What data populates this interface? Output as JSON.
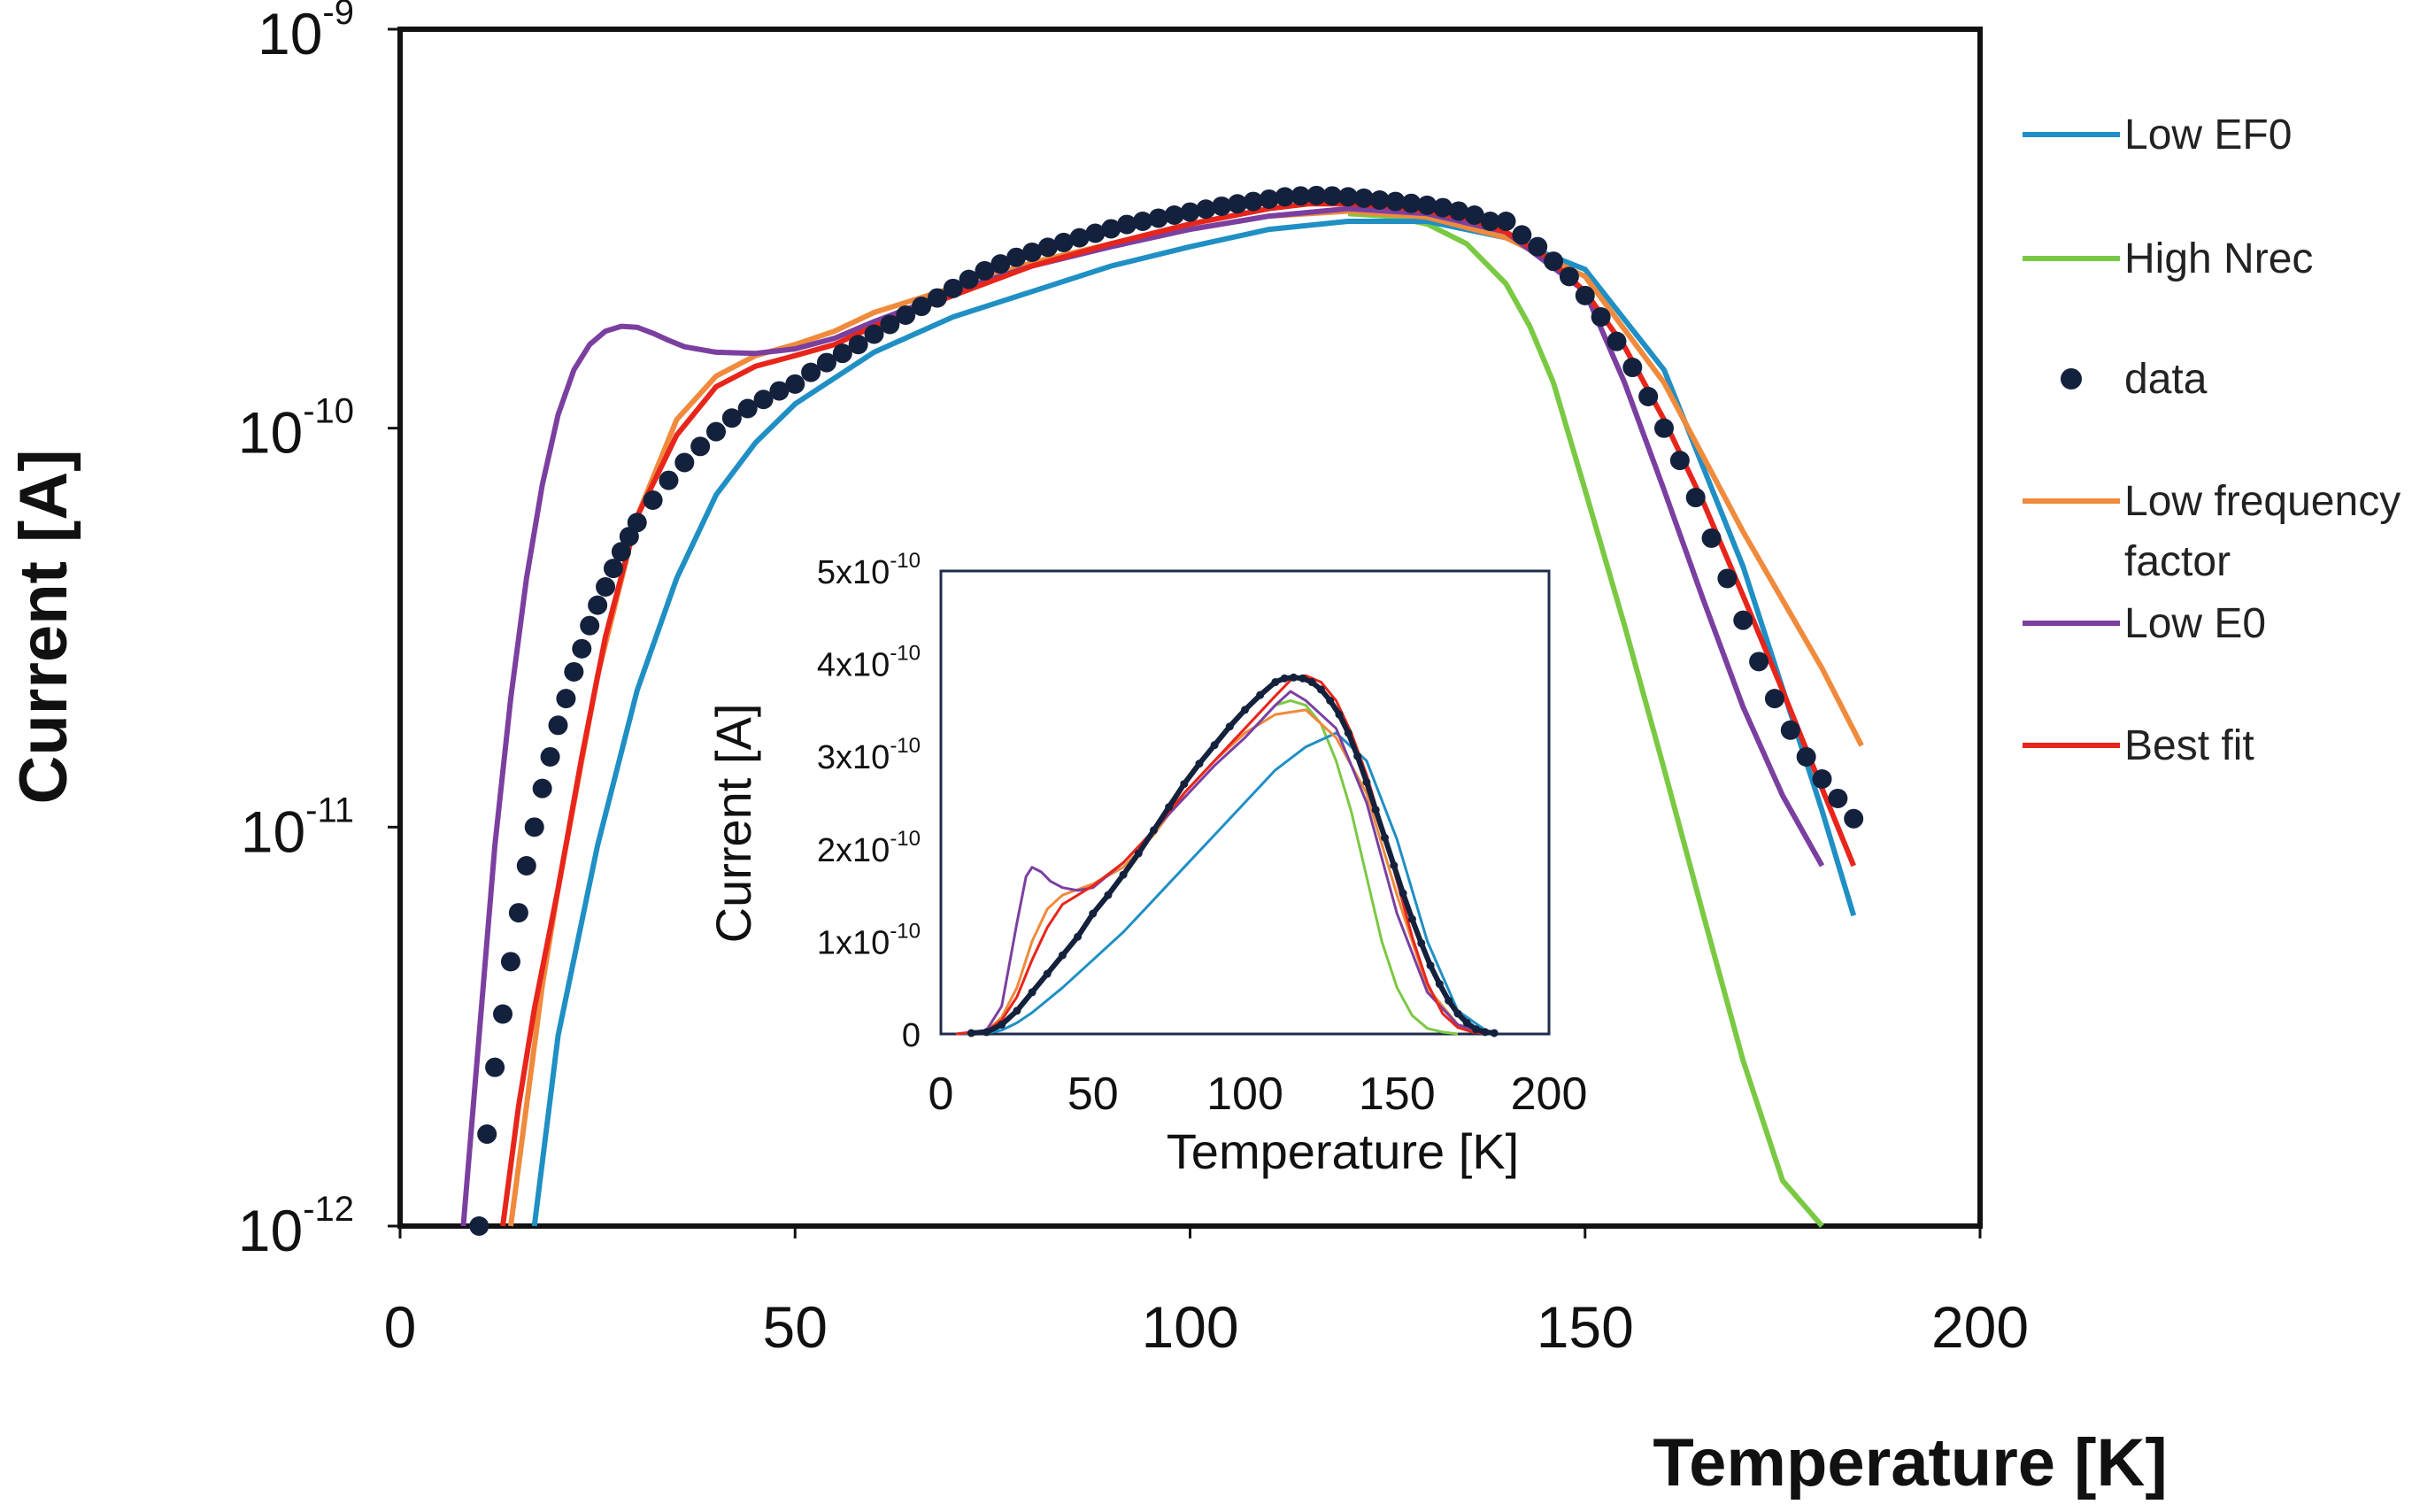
{
  "chart_data": [
    {
      "type": "line",
      "yscale": "log",
      "xlabel": "Temperature [K]",
      "ylabel": "Current [A]",
      "xlim": [
        0,
        200
      ],
      "ylim": [
        1e-12,
        1e-09
      ],
      "x_ticks": [
        "0",
        "50",
        "100",
        "150",
        "200"
      ],
      "x_tick_values": [
        0,
        50,
        100,
        150,
        200
      ],
      "y_ticks": [
        {
          "value": 1e-09,
          "base": "10",
          "exp": "-9"
        },
        {
          "value": 1e-10,
          "base": "10",
          "exp": "-10"
        },
        {
          "value": 1e-11,
          "base": "10",
          "exp": "-11"
        },
        {
          "value": 1e-12,
          "base": "10",
          "exp": "-12"
        }
      ],
      "legend_position": "right",
      "series": [
        {
          "name": "Low EF0",
          "label_lines": [
            "Low EF0"
          ],
          "color": "#1f8fc4",
          "style": "line",
          "x": [
            17,
            20,
            25,
            30,
            35,
            40,
            45,
            50,
            60,
            70,
            80,
            90,
            100,
            110,
            120,
            130,
            140,
            150,
            160,
            170,
            180,
            184
          ],
          "y": [
            1e-12,
            3e-12,
            9e-12,
            2.2e-11,
            4.2e-11,
            6.8e-11,
            9.2e-11,
            1.15e-10,
            1.55e-10,
            1.9e-10,
            2.2e-10,
            2.55e-10,
            2.85e-10,
            3.15e-10,
            3.3e-10,
            3.3e-10,
            3e-10,
            2.5e-10,
            1.4e-10,
            4.5e-11,
            1.1e-11,
            6e-12
          ]
        },
        {
          "name": "High Nrec",
          "label_lines": [
            "High Nrec"
          ],
          "color": "#7ac943",
          "style": "line",
          "x": [
            120,
            125,
            130,
            135,
            140,
            143,
            146,
            150,
            155,
            160,
            165,
            170,
            175,
            180
          ],
          "y": [
            3.45e-10,
            3.4e-10,
            3.25e-10,
            2.9e-10,
            2.3e-10,
            1.8e-10,
            1.3e-10,
            7e-11,
            3.2e-11,
            1.4e-11,
            6e-12,
            2.6e-12,
            1.3e-12,
            1e-12
          ]
        },
        {
          "name": "data",
          "label_lines": [
            "data"
          ],
          "color": "#14213d",
          "style": "marker",
          "x": [
            10,
            11,
            12,
            13,
            14,
            15,
            16,
            17,
            18,
            19,
            20,
            21,
            22,
            23,
            24,
            25,
            26,
            27,
            28,
            29,
            30,
            32,
            34,
            36,
            38,
            40,
            42,
            44,
            46,
            48,
            50,
            52,
            54,
            56,
            58,
            60,
            62,
            64,
            66,
            68,
            70,
            72,
            74,
            76,
            78,
            80,
            82,
            84,
            86,
            88,
            90,
            92,
            94,
            96,
            98,
            100,
            102,
            104,
            106,
            108,
            110,
            112,
            114,
            116,
            118,
            120,
            122,
            124,
            126,
            128,
            130,
            132,
            134,
            136,
            138,
            140,
            142,
            144,
            146,
            148,
            150,
            152,
            154,
            156,
            158,
            160,
            162,
            164,
            166,
            168,
            170,
            172,
            174,
            176,
            178,
            180,
            182,
            184
          ],
          "y": [
            1e-12,
            1.7e-12,
            2.5e-12,
            3.4e-12,
            4.6e-12,
            6.1e-12,
            8e-12,
            1e-11,
            1.25e-11,
            1.5e-11,
            1.8e-11,
            2.1e-11,
            2.45e-11,
            2.8e-11,
            3.2e-11,
            3.6e-11,
            4e-11,
            4.45e-11,
            4.9e-11,
            5.35e-11,
            5.8e-11,
            6.6e-11,
            7.4e-11,
            8.2e-11,
            9e-11,
            9.8e-11,
            1.06e-10,
            1.12e-10,
            1.18e-10,
            1.24e-10,
            1.29e-10,
            1.38e-10,
            1.46e-10,
            1.54e-10,
            1.62e-10,
            1.72e-10,
            1.82e-10,
            1.92e-10,
            2.02e-10,
            2.12e-10,
            2.24e-10,
            2.36e-10,
            2.48e-10,
            2.58e-10,
            2.68e-10,
            2.76e-10,
            2.84e-10,
            2.92e-10,
            3e-10,
            3.08e-10,
            3.16e-10,
            3.24e-10,
            3.3e-10,
            3.36e-10,
            3.42e-10,
            3.48e-10,
            3.54e-10,
            3.6e-10,
            3.65e-10,
            3.7e-10,
            3.75e-10,
            3.8e-10,
            3.82e-10,
            3.83e-10,
            3.82e-10,
            3.8e-10,
            3.77e-10,
            3.73e-10,
            3.7e-10,
            3.66e-10,
            3.62e-10,
            3.57e-10,
            3.5e-10,
            3.42e-10,
            3.3e-10,
            3.3e-10,
            3.05e-10,
            2.85e-10,
            2.62e-10,
            2.4e-10,
            2.15e-10,
            1.9e-10,
            1.65e-10,
            1.42e-10,
            1.2e-10,
            1e-10,
            8.3e-11,
            6.7e-11,
            5.3e-11,
            4.2e-11,
            3.3e-11,
            2.6e-11,
            2.1e-11,
            1.75e-11,
            1.5e-11,
            1.32e-11,
            1.18e-11,
            1.05e-11
          ]
        },
        {
          "name": "Low frequency factor",
          "label_lines": [
            "Low frequency",
            "factor"
          ],
          "color": "#f08a3c",
          "style": "line",
          "x": [
            14,
            16,
            18,
            20,
            25,
            30,
            35,
            40,
            45,
            50,
            55,
            60,
            70,
            80,
            90,
            100,
            110,
            120,
            130,
            140,
            150,
            160,
            170,
            180,
            185
          ],
          "y": [
            1e-12,
            2e-12,
            4e-12,
            7e-12,
            2.4e-11,
            6e-11,
            1.05e-10,
            1.35e-10,
            1.52e-10,
            1.62e-10,
            1.75e-10,
            1.95e-10,
            2.25e-10,
            2.6e-10,
            2.9e-10,
            3.15e-10,
            3.4e-10,
            3.5e-10,
            3.38e-10,
            3e-10,
            2.4e-10,
            1.3e-10,
            5.5e-11,
            2.5e-11,
            1.6e-11
          ]
        },
        {
          "name": "Low E0",
          "label_lines": [
            "Low E0"
          ],
          "color": "#7b3fa0",
          "style": "line",
          "x": [
            8,
            10,
            12,
            14,
            16,
            18,
            20,
            22,
            24,
            26,
            28,
            30,
            32,
            34,
            36,
            40,
            45,
            50,
            55,
            60,
            70,
            80,
            90,
            100,
            110,
            120,
            130,
            140,
            150,
            155,
            160,
            165,
            170,
            175,
            180
          ],
          "y": [
            1e-12,
            3e-12,
            9e-12,
            2.1e-11,
            4.2e-11,
            7.2e-11,
            1.08e-10,
            1.4e-10,
            1.62e-10,
            1.75e-10,
            1.8e-10,
            1.79e-10,
            1.73e-10,
            1.66e-10,
            1.6e-10,
            1.55e-10,
            1.54e-10,
            1.58e-10,
            1.68e-10,
            1.85e-10,
            2.2e-10,
            2.55e-10,
            2.85e-10,
            3.15e-10,
            3.4e-10,
            3.55e-10,
            3.45e-10,
            3.1e-10,
            2.2e-10,
            1.3e-10,
            7e-11,
            3.7e-11,
            2e-11,
            1.2e-11,
            8e-12
          ]
        },
        {
          "name": "Best fit",
          "label_lines": [
            "Best fit"
          ],
          "color": "#e8251b",
          "style": "line",
          "x": [
            13,
            15,
            17,
            20,
            23,
            26,
            30,
            35,
            40,
            45,
            50,
            55,
            60,
            70,
            80,
            90,
            100,
            110,
            115,
            120,
            125,
            130,
            135,
            140,
            145,
            150,
            155,
            160,
            165,
            170,
            175,
            180,
            184
          ],
          "y": [
            1e-12,
            2e-12,
            3.5e-12,
            7e-12,
            1.5e-11,
            3e-11,
            6e-11,
            9.6e-11,
            1.27e-10,
            1.43e-10,
            1.52e-10,
            1.62e-10,
            1.8e-10,
            2.15e-10,
            2.55e-10,
            2.9e-10,
            3.25e-10,
            3.55e-10,
            3.65e-10,
            3.65e-10,
            3.6e-10,
            3.5e-10,
            3.35e-10,
            3.1e-10,
            2.7e-10,
            2.2e-10,
            1.6e-10,
            1.05e-10,
            6.5e-11,
            3.8e-11,
            2.2e-11,
            1.25e-11,
            8e-12
          ]
        }
      ]
    },
    {
      "type": "line",
      "inset": true,
      "yscale": "linear",
      "xlabel": "Temperature [K]",
      "ylabel": "Current [A]",
      "xlim": [
        0,
        200
      ],
      "ylim": [
        0,
        5e-10
      ],
      "x_ticks": [
        "0",
        "50",
        "100",
        "150",
        "200"
      ],
      "x_tick_values": [
        0,
        50,
        100,
        150,
        200
      ],
      "y_ticks": [
        {
          "value": 0,
          "mant": "0",
          "base": "",
          "exp": ""
        },
        {
          "value": 1e-10,
          "mant": "1x",
          "base": "10",
          "exp": "-10"
        },
        {
          "value": 2e-10,
          "mant": "2x",
          "base": "10",
          "exp": "-10"
        },
        {
          "value": 3e-10,
          "mant": "3x",
          "base": "10",
          "exp": "-10"
        },
        {
          "value": 4e-10,
          "mant": "4x",
          "base": "10",
          "exp": "-10"
        },
        {
          "value": 5e-10,
          "mant": "5x",
          "base": "10",
          "exp": "-10"
        }
      ],
      "series": [
        {
          "name": "Low EF0",
          "color": "#1f8fc4",
          "style": "line",
          "x": [
            5,
            15,
            20,
            25,
            30,
            40,
            50,
            60,
            70,
            80,
            90,
            100,
            110,
            120,
            130,
            140,
            150,
            160,
            170,
            180
          ],
          "y": [
            0,
            1e-12,
            4e-12,
            1.2e-11,
            2.3e-11,
            5e-11,
            8e-11,
            1.1e-10,
            1.45e-10,
            1.8e-10,
            2.15e-10,
            2.5e-10,
            2.85e-10,
            3.1e-10,
            3.25e-10,
            2.95e-10,
            2.1e-10,
            1e-10,
            2.5e-11,
            2e-12
          ]
        },
        {
          "name": "High Nrec",
          "color": "#7ac943",
          "style": "line",
          "x": [
            110,
            115,
            120,
            125,
            130,
            135,
            140,
            145,
            150,
            155,
            160,
            165,
            170
          ],
          "y": [
            3.55e-10,
            3.6e-10,
            3.55e-10,
            3.35e-10,
            2.95e-10,
            2.4e-10,
            1.7e-10,
            1e-10,
            5e-11,
            2e-11,
            6e-12,
            2e-12,
            0
          ]
        },
        {
          "name": "data",
          "color": "#14213d",
          "style": "marker",
          "x": [
            10,
            15,
            20,
            25,
            30,
            35,
            40,
            45,
            50,
            55,
            60,
            65,
            70,
            75,
            80,
            85,
            90,
            95,
            100,
            105,
            110,
            113,
            116,
            119,
            122,
            125,
            128,
            131,
            134,
            137,
            140,
            143,
            146,
            149,
            152,
            155,
            158,
            161,
            164,
            167,
            170,
            173,
            176,
            179,
            182
          ],
          "y": [
            1e-12,
            2e-12,
            1e-11,
            2.5e-11,
            4.5e-11,
            6.5e-11,
            8.5e-11,
            1.05e-10,
            1.3e-10,
            1.5e-10,
            1.72e-10,
            1.95e-10,
            2.2e-10,
            2.45e-10,
            2.7e-10,
            2.92e-10,
            3.12e-10,
            3.32e-10,
            3.5e-10,
            3.66e-10,
            3.8e-10,
            3.84e-10,
            3.85e-10,
            3.84e-10,
            3.8e-10,
            3.72e-10,
            3.6e-10,
            3.45e-10,
            3.25e-10,
            3e-10,
            2.72e-10,
            2.42e-10,
            2.12e-10,
            1.82e-10,
            1.52e-10,
            1.24e-10,
            9.8e-11,
            7.4e-11,
            5.4e-11,
            3.6e-11,
            2.2e-11,
            1.2e-11,
            5e-12,
            2e-12,
            1e-12
          ]
        },
        {
          "name": "Low frequency factor",
          "color": "#f08a3c",
          "style": "line",
          "x": [
            5,
            15,
            20,
            25,
            30,
            35,
            40,
            50,
            60,
            70,
            80,
            90,
            100,
            110,
            120,
            130,
            140,
            150,
            160,
            170,
            180
          ],
          "y": [
            0,
            3e-12,
            1.8e-11,
            5e-11,
            1e-10,
            1.35e-10,
            1.5e-10,
            1.62e-10,
            1.8e-10,
            2.15e-10,
            2.6e-10,
            2.95e-10,
            3.25e-10,
            3.45e-10,
            3.5e-10,
            3.2e-10,
            2.6e-10,
            1.5e-10,
            5e-11,
            1e-11,
            0
          ]
        },
        {
          "name": "Low E0",
          "color": "#7b3fa0",
          "style": "line",
          "x": [
            5,
            15,
            20,
            25,
            28,
            30,
            33,
            36,
            40,
            45,
            50,
            60,
            70,
            80,
            90,
            100,
            110,
            115,
            120,
            130,
            140,
            150,
            160,
            170,
            180
          ],
          "y": [
            0,
            4e-12,
            3e-11,
            1.2e-10,
            1.7e-10,
            1.8e-10,
            1.75e-10,
            1.65e-10,
            1.58e-10,
            1.55e-10,
            1.58e-10,
            1.85e-10,
            2.2e-10,
            2.55e-10,
            2.9e-10,
            3.2e-10,
            3.55e-10,
            3.7e-10,
            3.6e-10,
            3.3e-10,
            2.5e-10,
            1.3e-10,
            4.5e-11,
            1e-11,
            0
          ]
        },
        {
          "name": "Best fit",
          "color": "#e8251b",
          "style": "line",
          "x": [
            5,
            15,
            20,
            25,
            30,
            35,
            40,
            50,
            60,
            70,
            80,
            90,
            100,
            110,
            115,
            120,
            125,
            130,
            135,
            140,
            145,
            150,
            155,
            160,
            165,
            170,
            175,
            180
          ],
          "y": [
            0,
            3e-12,
            1.5e-11,
            4e-11,
            8e-11,
            1.15e-10,
            1.4e-10,
            1.6e-10,
            1.85e-10,
            2.2e-10,
            2.6e-10,
            2.95e-10,
            3.3e-10,
            3.65e-10,
            3.82e-10,
            3.87e-10,
            3.8e-10,
            3.6e-10,
            3.25e-10,
            2.8e-10,
            2.25e-10,
            1.65e-10,
            1.05e-10,
            5.5e-11,
            2.2e-11,
            7e-12,
            2e-12,
            0
          ]
        }
      ]
    }
  ]
}
